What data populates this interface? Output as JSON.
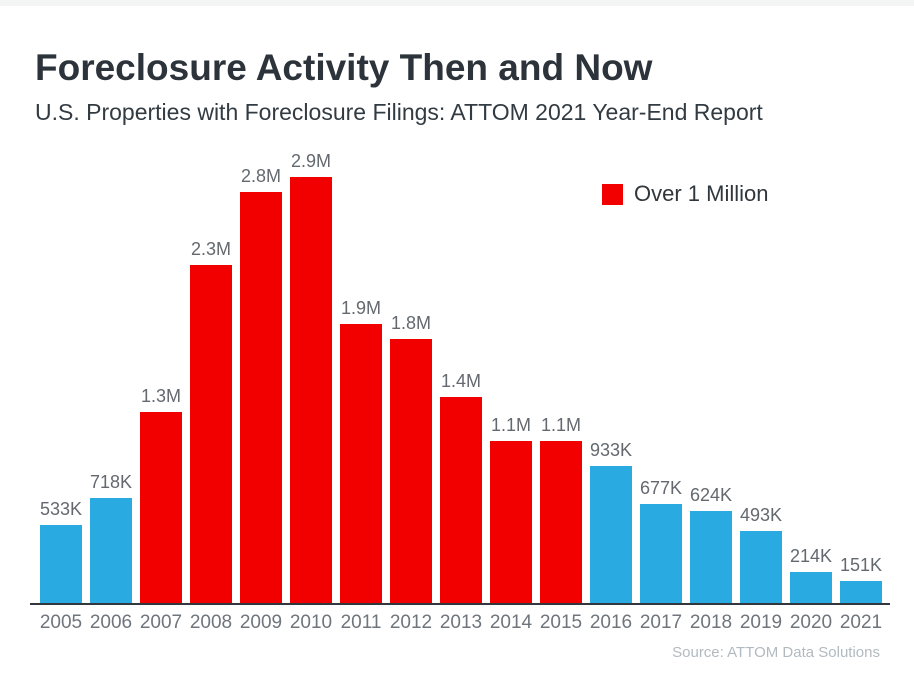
{
  "chart_data": {
    "type": "bar",
    "title": "Foreclosure Activity Then and Now",
    "subtitle": "U.S. Properties with Foreclosure Filings: ATTOM 2021 Year-End Report",
    "categories": [
      "2005",
      "2006",
      "2007",
      "2008",
      "2009",
      "2010",
      "2011",
      "2012",
      "2013",
      "2014",
      "2015",
      "2016",
      "2017",
      "2018",
      "2019",
      "2020",
      "2021"
    ],
    "values": [
      533000,
      718000,
      1300000,
      2300000,
      2800000,
      2900000,
      1900000,
      1800000,
      1400000,
      1100000,
      1100000,
      933000,
      677000,
      624000,
      493000,
      214000,
      151000
    ],
    "labels": [
      "533K",
      "718K",
      "1.3M",
      "2.3M",
      "2.8M",
      "2.9M",
      "1.9M",
      "1.8M",
      "1.4M",
      "1.1M",
      "1.1M",
      "933K",
      "677K",
      "624K",
      "493K",
      "214K",
      "151K"
    ],
    "threshold": 1000000,
    "colors": {
      "over_million": "#f20000",
      "under_million": "#29abe2"
    },
    "legend": [
      {
        "label": "Over 1 Million",
        "color": "#f20000"
      }
    ],
    "legend_position": "top-right",
    "source": "Source: ATTOM Data Solutions",
    "xlabel": "",
    "ylabel": "",
    "ylim": [
      0,
      2900000
    ],
    "grid": false
  }
}
